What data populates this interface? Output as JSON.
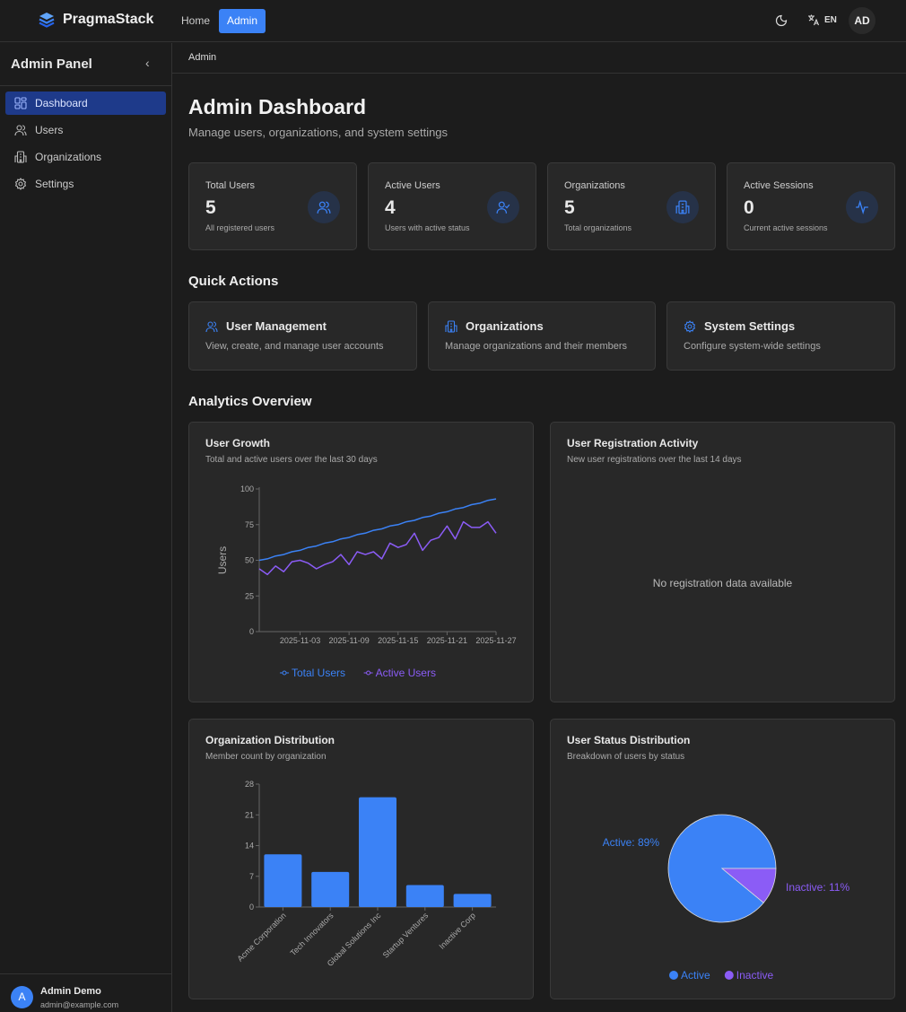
{
  "header": {
    "brand": "PragmaStack",
    "nav": [
      {
        "label": "Home"
      },
      {
        "label": "Admin"
      }
    ],
    "language": "EN",
    "user_initials": "AD",
    "icons": [
      "layers-logo-icon",
      "moon-icon",
      "translate-icon"
    ]
  },
  "sidebar": {
    "title": "Admin Panel",
    "items": [
      {
        "label": "Dashboard",
        "icon": "dashboard-icon",
        "active": true
      },
      {
        "label": "Users",
        "icon": "users-icon"
      },
      {
        "label": "Organizations",
        "icon": "building-icon"
      },
      {
        "label": "Settings",
        "icon": "gear-icon"
      }
    ],
    "user": {
      "initial": "A",
      "name": "Admin Demo",
      "email": "admin@example.com"
    }
  },
  "breadcrumb": "Admin",
  "page": {
    "title": "Admin Dashboard",
    "subtitle": "Manage users, organizations, and system settings"
  },
  "stats": [
    {
      "label": "Total Users",
      "value": "5",
      "desc": "All registered users",
      "icon": "users-icon"
    },
    {
      "label": "Active Users",
      "value": "4",
      "desc": "Users with active status",
      "icon": "user-check-icon"
    },
    {
      "label": "Organizations",
      "value": "5",
      "desc": "Total organizations",
      "icon": "building-icon"
    },
    {
      "label": "Active Sessions",
      "value": "0",
      "desc": "Current active sessions",
      "icon": "activity-icon"
    }
  ],
  "quick_actions": {
    "title": "Quick Actions",
    "items": [
      {
        "title": "User Management",
        "desc": "View, create, and manage user accounts",
        "icon": "users-icon"
      },
      {
        "title": "Organizations",
        "desc": "Manage organizations and their members",
        "icon": "building-icon"
      },
      {
        "title": "System Settings",
        "desc": "Configure system-wide settings",
        "icon": "gear-icon"
      }
    ]
  },
  "analytics": {
    "title": "Analytics Overview",
    "growth": {
      "title": "User Growth",
      "subtitle": "Total and active users over the last 30 days"
    },
    "registration": {
      "title": "User Registration Activity",
      "subtitle": "New user registrations over the last 14 days",
      "empty": "No registration data available"
    },
    "orgs": {
      "title": "Organization Distribution",
      "subtitle": "Member count by organization"
    },
    "status": {
      "title": "User Status Distribution",
      "subtitle": "Breakdown of users by status"
    }
  },
  "colors": {
    "accent": "#3b82f6",
    "purple": "#8b5cf6",
    "bg": "#1c1c1c",
    "card": "#282828"
  },
  "chart_data": [
    {
      "type": "line",
      "ylabel": "Users",
      "ylim": [
        0,
        100
      ],
      "yticks": [
        0,
        25,
        50,
        75,
        100
      ],
      "x_start": "2025-10-29",
      "xticks": [
        "2025-11-03",
        "2025-11-09",
        "2025-11-15",
        "2025-11-21",
        "2025-11-27"
      ],
      "x": [
        "2025-10-29",
        "2025-10-30",
        "2025-10-31",
        "2025-11-01",
        "2025-11-02",
        "2025-11-03",
        "2025-11-04",
        "2025-11-05",
        "2025-11-06",
        "2025-11-07",
        "2025-11-08",
        "2025-11-09",
        "2025-11-10",
        "2025-11-11",
        "2025-11-12",
        "2025-11-13",
        "2025-11-14",
        "2025-11-15",
        "2025-11-16",
        "2025-11-17",
        "2025-11-18",
        "2025-11-19",
        "2025-11-20",
        "2025-11-21",
        "2025-11-22",
        "2025-11-23",
        "2025-11-24",
        "2025-11-25",
        "2025-11-26",
        "2025-11-27"
      ],
      "series": [
        {
          "name": "Total Users",
          "color": "#3b82f6",
          "values": [
            50,
            51,
            53,
            54,
            56,
            57,
            59,
            60,
            62,
            63,
            65,
            66,
            68,
            69,
            71,
            72,
            74,
            75,
            77,
            78,
            80,
            81,
            83,
            84,
            86,
            87,
            89,
            90,
            92,
            93
          ]
        },
        {
          "name": "Active Users",
          "color": "#8b5cf6",
          "values": [
            44,
            40,
            46,
            42,
            49,
            50,
            48,
            44,
            47,
            49,
            54,
            47,
            56,
            54,
            56,
            51,
            62,
            59,
            61,
            69,
            57,
            64,
            66,
            74,
            65,
            77,
            73,
            73,
            77,
            69
          ]
        }
      ],
      "legend": "bottom"
    },
    {
      "type": "bar",
      "categories": [
        "Acme Corporation",
        "Tech Innovators",
        "Global Solutions Inc",
        "Startup Ventures",
        "Inactive Corp"
      ],
      "values": [
        12,
        8,
        25,
        5,
        3
      ],
      "ylim": [
        0,
        28
      ],
      "yticks": [
        0,
        7,
        14,
        21,
        28
      ],
      "color": "#3b82f6"
    },
    {
      "type": "pie",
      "slices": [
        {
          "name": "Active",
          "value": 89,
          "label": "Active: 89%",
          "color": "#3b82f6"
        },
        {
          "name": "Inactive",
          "value": 11,
          "label": "Inactive: 11%",
          "color": "#8b5cf6"
        }
      ],
      "legend": "bottom"
    }
  ]
}
